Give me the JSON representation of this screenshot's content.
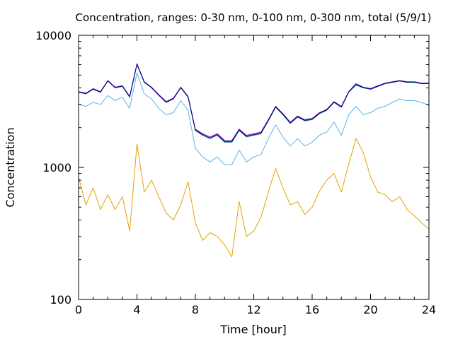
{
  "chart_data": {
    "type": "line",
    "title": "Concentration, ranges: 0-30 nm, 0-100 nm, 0-300 nm, total (5/9/1)",
    "xlabel": "Time [hour]",
    "ylabel": "Concentration",
    "xlim": [
      0,
      24
    ],
    "ylim": [
      100,
      10000
    ],
    "yscale": "log",
    "x_ticks": [
      0,
      4,
      8,
      12,
      16,
      20,
      24
    ],
    "y_ticks": [
      100,
      1000,
      10000
    ],
    "legend": "none",
    "grid": false,
    "x": [
      0,
      0.5,
      1,
      1.5,
      2,
      2.5,
      3,
      3.5,
      4,
      4.5,
      5,
      5.5,
      6,
      6.5,
      7,
      7.5,
      8,
      8.5,
      9,
      9.5,
      10,
      10.5,
      11,
      11.5,
      12,
      12.5,
      13,
      13.5,
      14,
      14.5,
      15,
      15.5,
      16,
      16.5,
      17,
      17.5,
      18,
      18.5,
      19,
      19.5,
      20,
      20.5,
      21,
      21.5,
      22,
      22.5,
      23,
      23.5,
      24
    ],
    "series": [
      {
        "color": "#e6a000",
        "values": [
          850,
          520,
          700,
          480,
          620,
          480,
          600,
          330,
          1500,
          650,
          800,
          600,
          450,
          400,
          520,
          780,
          380,
          280,
          320,
          300,
          260,
          210,
          550,
          300,
          330,
          420,
          650,
          980,
          700,
          520,
          550,
          440,
          500,
          660,
          800,
          900,
          650,
          1050,
          1650,
          1300,
          850,
          650,
          620,
          550,
          600,
          480,
          430,
          380,
          340
        ]
      },
      {
        "color": "#56b4e9",
        "values": [
          3000,
          2900,
          3100,
          3000,
          3500,
          3200,
          3400,
          2800,
          5200,
          3600,
          3300,
          2800,
          2500,
          2600,
          3200,
          2700,
          1400,
          1200,
          1100,
          1200,
          1050,
          1050,
          1350,
          1100,
          1200,
          1250,
          1650,
          2100,
          1700,
          1450,
          1650,
          1450,
          1550,
          1750,
          1850,
          2200,
          1750,
          2500,
          2900,
          2500,
          2600,
          2800,
          2900,
          3100,
          3300,
          3200,
          3200,
          3100,
          2950
        ]
      },
      {
        "color": "#009e73",
        "values": [
          3700,
          3600,
          3900,
          3700,
          4500,
          4000,
          4100,
          3400,
          6000,
          4400,
          4000,
          3500,
          3100,
          3300,
          4000,
          3400,
          1900,
          1750,
          1650,
          1750,
          1550,
          1550,
          1900,
          1700,
          1750,
          1800,
          2250,
          2850,
          2500,
          2150,
          2400,
          2250,
          2300,
          2550,
          2700,
          3100,
          2850,
          3700,
          4200,
          4000,
          3900,
          4100,
          4300,
          4400,
          4500,
          4400,
          4400,
          4300,
          4300
        ]
      },
      {
        "color": "#9400d3",
        "values": [
          3750,
          3650,
          3950,
          3750,
          4550,
          4050,
          4150,
          3450,
          6100,
          4450,
          4050,
          3550,
          3150,
          3350,
          4050,
          3450,
          1950,
          1800,
          1700,
          1800,
          1600,
          1600,
          1950,
          1750,
          1800,
          1850,
          2300,
          2900,
          2550,
          2200,
          2450,
          2300,
          2350,
          2600,
          2750,
          3150,
          2900,
          3750,
          4300,
          4050,
          3950,
          4150,
          4350,
          4450,
          4550,
          4450,
          4450,
          4350,
          4350
        ]
      },
      {
        "color": "#000080",
        "values": [
          3720,
          3620,
          3920,
          3720,
          4520,
          4020,
          4120,
          3420,
          6050,
          4420,
          4020,
          3520,
          3120,
          3320,
          4020,
          3420,
          1920,
          1770,
          1670,
          1770,
          1570,
          1570,
          1920,
          1720,
          1770,
          1820,
          2270,
          2870,
          2520,
          2170,
          2420,
          2270,
          2320,
          2570,
          2720,
          3120,
          2870,
          3720,
          4250,
          4020,
          3920,
          4120,
          4320,
          4420,
          4520,
          4420,
          4420,
          4320,
          4320
        ]
      }
    ]
  }
}
